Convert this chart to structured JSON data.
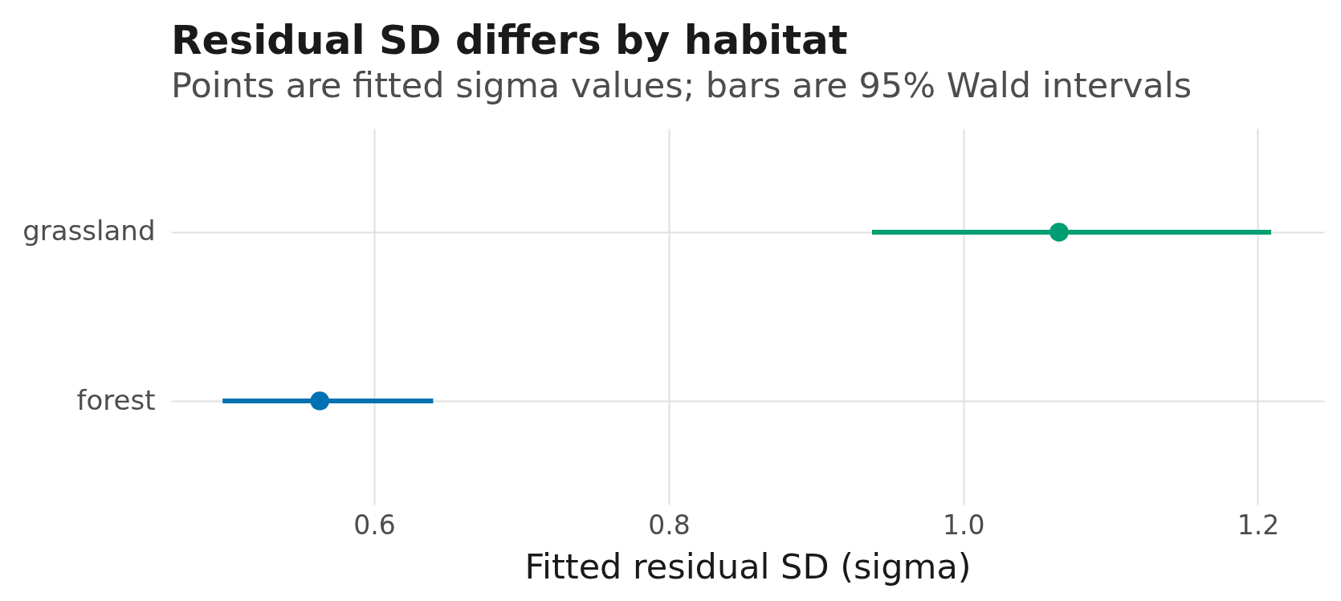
{
  "chart_data": {
    "type": "scatter",
    "orientation": "horizontal",
    "title": "Residual SD differs by habitat",
    "subtitle": "Points are fitted sigma values; bars are 95% Wald intervals",
    "xlabel": "Fitted residual SD (sigma)",
    "categories": [
      "grassland",
      "forest"
    ],
    "values": [
      1.065,
      0.563
    ],
    "errors": [
      [
        0.938,
        1.209
      ],
      [
        0.497,
        0.64
      ]
    ],
    "colors": [
      "#009e73",
      "#0072b2"
    ],
    "xlim": [
      0.462,
      1.245
    ],
    "xticks": [
      0.6,
      0.8,
      {
        "value": 1,
        "label": "1.0"
      },
      1.2
    ],
    "grid": true
  }
}
